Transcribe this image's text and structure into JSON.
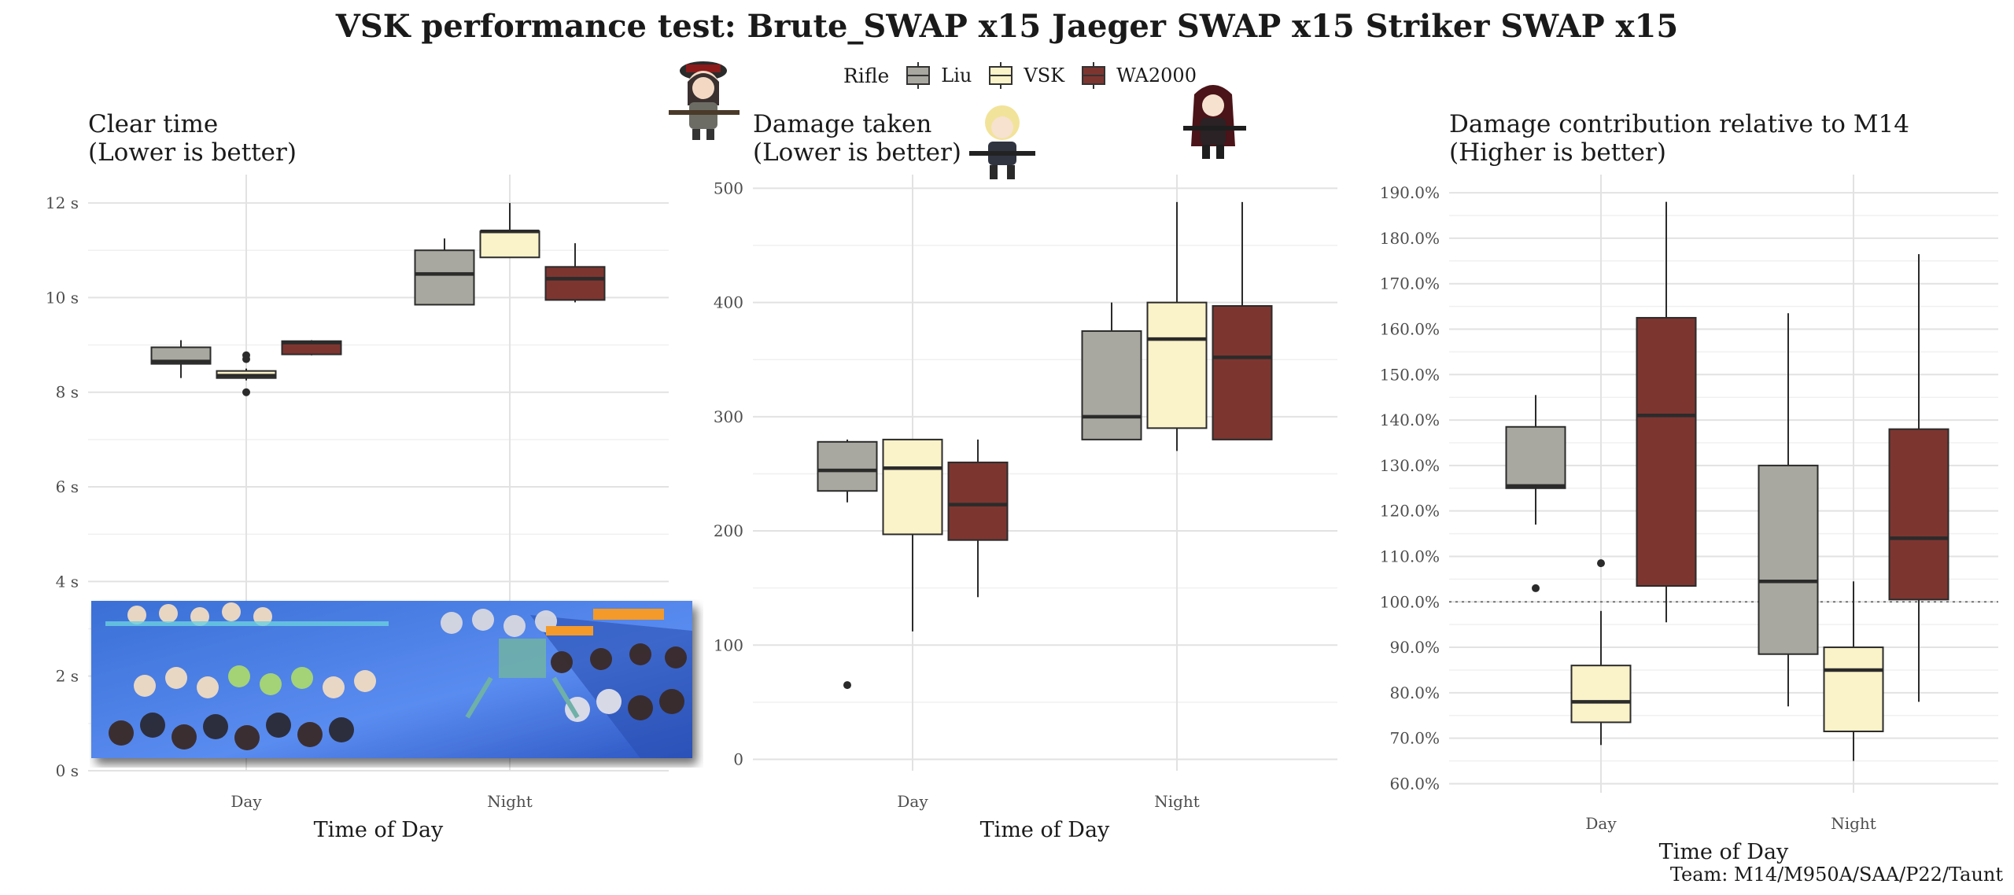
{
  "title": "VSK performance test: Brute_SWAP x15 Jaeger SWAP x15 Striker SWAP x15",
  "legend": {
    "title": "Rifle",
    "entries": [
      {
        "name": "Liu",
        "color": "#a9a8a0"
      },
      {
        "name": "VSK",
        "color": "#faf2c8"
      },
      {
        "name": "WA2000",
        "color": "#7d3530"
      }
    ]
  },
  "caption": "Team: M14/M950A/SAA/P22/Taunt",
  "chart_data": [
    {
      "type": "box",
      "title_line1": "Clear time",
      "title_line2": "(Lower is better)",
      "xlabel": "Time of Day",
      "ylabel": "",
      "categories": [
        "Day",
        "Night"
      ],
      "y_ticks": [
        0,
        2,
        4,
        6,
        8,
        10,
        12
      ],
      "y_tick_labels": [
        "0 s",
        "2 s",
        "4 s",
        "6 s",
        "8 s",
        "10 s",
        "12 s"
      ],
      "ylim": [
        0,
        12.6
      ],
      "reference_line": null,
      "series": [
        {
          "name": "Liu",
          "boxes": [
            {
              "min": 8.3,
              "q1": 8.6,
              "median": 8.65,
              "q3": 8.95,
              "max": 9.1,
              "outliers": []
            },
            {
              "min": 9.85,
              "q1": 9.85,
              "median": 10.5,
              "q3": 11.0,
              "max": 11.25,
              "outliers": []
            }
          ]
        },
        {
          "name": "VSK",
          "boxes": [
            {
              "min": 8.25,
              "q1": 8.3,
              "median": 8.35,
              "q3": 8.45,
              "max": 8.5,
              "outliers": [
                8.0,
                8.7,
                8.78
              ]
            },
            {
              "min": 10.85,
              "q1": 10.85,
              "median": 11.4,
              "q3": 11.4,
              "max": 12.0,
              "outliers": []
            }
          ]
        },
        {
          "name": "WA2000",
          "boxes": [
            {
              "min": 8.78,
              "q1": 8.8,
              "median": 9.05,
              "q3": 9.08,
              "max": 9.1,
              "outliers": []
            },
            {
              "min": 9.9,
              "q1": 9.95,
              "median": 10.4,
              "q3": 10.65,
              "max": 11.15,
              "outliers": []
            }
          ]
        }
      ]
    },
    {
      "type": "box",
      "title_line1": "Damage taken",
      "title_line2": "(Lower is better)",
      "xlabel": "Time of Day",
      "ylabel": "",
      "categories": [
        "Day",
        "Night"
      ],
      "y_ticks": [
        0,
        100,
        200,
        300,
        400,
        500
      ],
      "y_tick_labels": [
        "0",
        "100",
        "200",
        "300",
        "400",
        "500"
      ],
      "ylim": [
        -10,
        512
      ],
      "reference_line": null,
      "series": [
        {
          "name": "Liu",
          "boxes": [
            {
              "min": 225,
              "q1": 235,
              "median": 253,
              "q3": 278,
              "max": 280,
              "outliers": [
                65
              ]
            },
            {
              "min": 280,
              "q1": 280,
              "median": 300,
              "q3": 375,
              "max": 400,
              "outliers": []
            }
          ]
        },
        {
          "name": "VSK",
          "boxes": [
            {
              "min": 112,
              "q1": 197,
              "median": 255,
              "q3": 280,
              "max": 280,
              "outliers": []
            },
            {
              "min": 270,
              "q1": 290,
              "median": 368,
              "q3": 400,
              "max": 488,
              "outliers": []
            }
          ]
        },
        {
          "name": "WA2000",
          "boxes": [
            {
              "min": 142,
              "q1": 192,
              "median": 223,
              "q3": 260,
              "max": 280,
              "outliers": []
            },
            {
              "min": 280,
              "q1": 280,
              "median": 352,
              "q3": 397,
              "max": 488,
              "outliers": []
            }
          ]
        }
      ]
    },
    {
      "type": "box",
      "title_line1": "Damage contribution relative to M14",
      "title_line2": "(Higher is better)",
      "xlabel": "Time of Day",
      "ylabel": "",
      "categories": [
        "Day",
        "Night"
      ],
      "y_ticks": [
        60,
        70,
        80,
        90,
        100,
        110,
        120,
        130,
        140,
        150,
        160,
        170,
        180,
        190
      ],
      "y_tick_labels": [
        "60.0%",
        "70.0%",
        "80.0%",
        "90.0%",
        "100.0%",
        "110.0%",
        "120.0%",
        "130.0%",
        "140.0%",
        "150.0%",
        "160.0%",
        "170.0%",
        "180.0%",
        "190.0%"
      ],
      "ylim": [
        58,
        194
      ],
      "reference_line": 100,
      "series": [
        {
          "name": "Liu",
          "boxes": [
            {
              "min": 117,
              "q1": 125,
              "median": 125.5,
              "q3": 138.5,
              "max": 145.5,
              "outliers": [
                103
              ]
            },
            {
              "min": 77,
              "q1": 88.5,
              "median": 104.5,
              "q3": 130,
              "max": 163.5,
              "outliers": []
            }
          ]
        },
        {
          "name": "VSK",
          "boxes": [
            {
              "min": 68.5,
              "q1": 73.5,
              "median": 78,
              "q3": 86,
              "max": 98,
              "outliers": [
                108.5
              ]
            },
            {
              "min": 65,
              "q1": 71.5,
              "median": 85,
              "q3": 90,
              "max": 104.5,
              "outliers": []
            }
          ]
        },
        {
          "name": "WA2000",
          "boxes": [
            {
              "min": 95.5,
              "q1": 103.5,
              "median": 141,
              "q3": 162.5,
              "max": 188,
              "outliers": []
            },
            {
              "min": 78,
              "q1": 100.5,
              "median": 114,
              "q3": 138,
              "max": 176.5,
              "outliers": []
            }
          ]
        }
      ]
    }
  ]
}
